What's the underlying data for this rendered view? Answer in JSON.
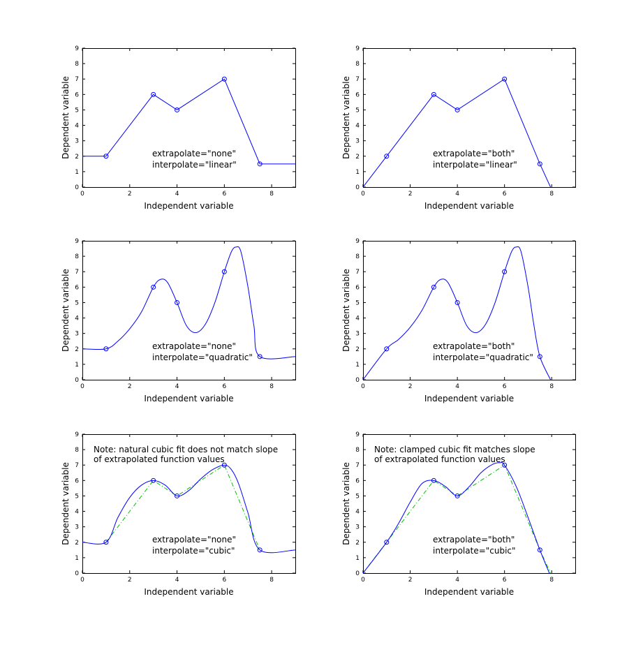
{
  "figure": {
    "colors": {
      "curve": "#0000ff",
      "points": "#0000ff",
      "dashdot": "#00c000",
      "axes": "#000000",
      "background": "#ffffff"
    }
  },
  "chart_data": [
    {
      "type": "line",
      "xlabel": "Independent variable",
      "ylabel": "Dependent variable",
      "xlim": [
        0,
        9
      ],
      "ylim": [
        0,
        9
      ],
      "xticks": [
        0,
        2,
        4,
        6,
        8
      ],
      "yticks": [
        0,
        1,
        2,
        3,
        4,
        5,
        6,
        7,
        8,
        9
      ],
      "grid": false,
      "points": {
        "x": [
          1,
          3,
          4,
          6,
          7.5
        ],
        "y": [
          2,
          6,
          5,
          7,
          1.5
        ]
      },
      "curve": {
        "x": [
          0,
          1,
          3,
          4,
          6,
          7.5,
          9
        ],
        "y": [
          2,
          2,
          6,
          5,
          7,
          1.5,
          1.5
        ]
      },
      "annotation_lines": [
        "extrapolate=\"none\"",
        "interpolate=\"linear\""
      ]
    },
    {
      "type": "line",
      "xlabel": "Independent variable",
      "ylabel": "Dependent variable",
      "xlim": [
        0,
        9
      ],
      "ylim": [
        0,
        9
      ],
      "xticks": [
        0,
        2,
        4,
        6,
        8
      ],
      "yticks": [
        0,
        1,
        2,
        3,
        4,
        5,
        6,
        7,
        8,
        9
      ],
      "grid": false,
      "points": {
        "x": [
          1,
          3,
          4,
          6,
          7.5
        ],
        "y": [
          2,
          6,
          5,
          7,
          1.5
        ]
      },
      "curve": {
        "x": [
          0,
          1,
          3,
          4,
          6,
          7.5,
          7.95
        ],
        "y": [
          0,
          2,
          6,
          5,
          7,
          1.5,
          0
        ]
      },
      "annotation_lines": [
        "extrapolate=\"both\"",
        "interpolate=\"linear\""
      ]
    },
    {
      "type": "line",
      "xlabel": "Independent variable",
      "ylabel": "Dependent variable",
      "xlim": [
        0,
        9
      ],
      "ylim": [
        0,
        9
      ],
      "xticks": [
        0,
        2,
        4,
        6,
        8
      ],
      "yticks": [
        0,
        1,
        2,
        3,
        4,
        5,
        6,
        7,
        8,
        9
      ],
      "grid": false,
      "points": {
        "x": [
          1,
          3,
          4,
          6,
          7.5
        ],
        "y": [
          2,
          6,
          5,
          7,
          1.5
        ]
      },
      "curve": {
        "x": [
          0,
          1,
          1.5,
          2,
          2.5,
          3,
          3.3,
          3.6,
          4,
          4.4,
          4.8,
          5.2,
          5.6,
          6,
          6.3,
          6.5,
          6.7,
          7,
          7.25,
          7.5,
          9
        ],
        "y": [
          2,
          2,
          2.5,
          3.3,
          4.4,
          6,
          6.5,
          6.3,
          5,
          3.5,
          3.05,
          3.6,
          5.0,
          7,
          8.3,
          8.6,
          8.3,
          6.0,
          3.5,
          1.5,
          1.5
        ]
      },
      "annotation_lines": [
        "extrapolate=\"none\"",
        "interpolate=\"quadratic\""
      ]
    },
    {
      "type": "line",
      "xlabel": "Independent variable",
      "ylabel": "Dependent variable",
      "xlim": [
        0,
        9
      ],
      "ylim": [
        0,
        9
      ],
      "xticks": [
        0,
        2,
        4,
        6,
        8
      ],
      "yticks": [
        0,
        1,
        2,
        3,
        4,
        5,
        6,
        7,
        8,
        9
      ],
      "grid": false,
      "points": {
        "x": [
          1,
          3,
          4,
          6,
          7.5
        ],
        "y": [
          2,
          6,
          5,
          7,
          1.5
        ]
      },
      "curve": {
        "x": [
          0,
          1,
          1.5,
          2,
          2.5,
          3,
          3.3,
          3.6,
          4,
          4.4,
          4.8,
          5.2,
          5.6,
          6,
          6.3,
          6.5,
          6.7,
          7,
          7.25,
          7.5,
          7.95
        ],
        "y": [
          0,
          2,
          2.6,
          3.4,
          4.5,
          6,
          6.5,
          6.3,
          5,
          3.5,
          3.05,
          3.6,
          5.0,
          7,
          8.3,
          8.6,
          8.3,
          6.0,
          3.5,
          1.5,
          0
        ]
      },
      "annotation_lines": [
        "extrapolate=\"both\"",
        "interpolate=\"quadratic\""
      ]
    },
    {
      "type": "line",
      "xlabel": "Independent variable",
      "ylabel": "Dependent variable",
      "xlim": [
        0,
        9
      ],
      "ylim": [
        0,
        9
      ],
      "xticks": [
        0,
        2,
        4,
        6,
        8
      ],
      "yticks": [
        0,
        1,
        2,
        3,
        4,
        5,
        6,
        7,
        8,
        9
      ],
      "grid": false,
      "points": {
        "x": [
          1,
          3,
          4,
          6,
          7.5
        ],
        "y": [
          2,
          6,
          5,
          7,
          1.5
        ]
      },
      "curve": {
        "x": [
          0,
          1,
          1.5,
          2,
          2.5,
          3,
          3.5,
          4,
          4.5,
          5,
          5.5,
          6,
          6.3,
          6.6,
          7,
          7.5,
          9
        ],
        "y": [
          2,
          2,
          3.6,
          4.9,
          5.7,
          6,
          5.7,
          5,
          5.35,
          6.1,
          6.7,
          7,
          6.7,
          5.8,
          3.9,
          1.5,
          1.5
        ]
      },
      "dashdot": {
        "x": [
          1,
          3,
          4,
          6,
          7.5
        ],
        "y": [
          2,
          6,
          5,
          7,
          1.5
        ]
      },
      "note_lines": [
        "Note: natural cubic fit does not match slope",
        "of extrapolated function values"
      ],
      "annotation_lines": [
        "extrapolate=\"none\"",
        "interpolate=\"cubic\""
      ]
    },
    {
      "type": "line",
      "xlabel": "Independent variable",
      "ylabel": "Dependent variable",
      "xlim": [
        0,
        9
      ],
      "ylim": [
        0,
        9
      ],
      "xticks": [
        0,
        2,
        4,
        6,
        8
      ],
      "yticks": [
        0,
        1,
        2,
        3,
        4,
        5,
        6,
        7,
        8,
        9
      ],
      "grid": false,
      "points": {
        "x": [
          1,
          3,
          4,
          6,
          7.5
        ],
        "y": [
          2,
          6,
          5,
          7,
          1.5
        ]
      },
      "curve": {
        "x": [
          0,
          1,
          1.5,
          2,
          2.5,
          3,
          3.5,
          4,
          4.5,
          5,
          5.5,
          5.8,
          6,
          6.5,
          7,
          7.5,
          7.9
        ],
        "y": [
          0,
          2,
          3.2,
          4.6,
          5.8,
          6,
          5.6,
          5,
          5.6,
          6.5,
          7.05,
          7.15,
          7.0,
          5.6,
          3.6,
          1.5,
          0
        ]
      },
      "dashdot": {
        "x": [
          0,
          1,
          3,
          4,
          6,
          7.5,
          7.95
        ],
        "y": [
          0,
          2,
          6,
          5,
          7,
          1.5,
          0
        ]
      },
      "note_lines": [
        "Note: clamped cubic fit matches slope",
        "of extrapolated function values"
      ],
      "annotation_lines": [
        "extrapolate=\"both\"",
        "interpolate=\"cubic\""
      ]
    }
  ]
}
